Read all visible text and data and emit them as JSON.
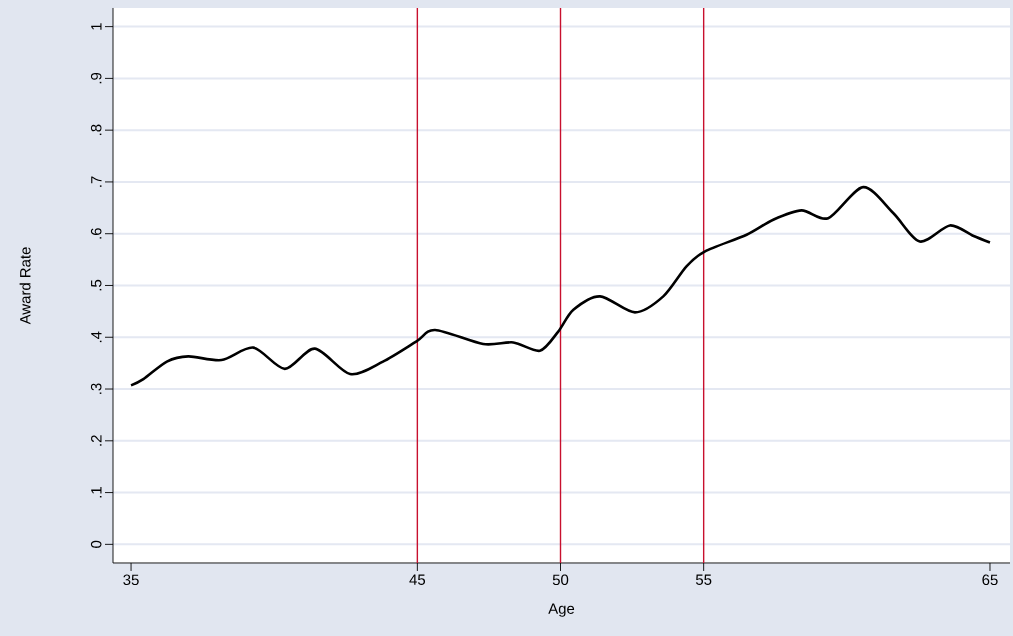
{
  "chart_data": {
    "type": "line",
    "xlabel": "Age",
    "ylabel": "Award Rate",
    "x": [
      35,
      35.43,
      36.25,
      37.0,
      38.16,
      39.27,
      40.37,
      41.42,
      42.65,
      43.8,
      44.97,
      45.62,
      47.3,
      48.35,
      49.28,
      49.92,
      50.45,
      51.38,
      52.6,
      53.59,
      54.4,
      55.05,
      56.5,
      57.43,
      58.42,
      59.35,
      60.57,
      61.62,
      62.55,
      63.6,
      64.41,
      65
    ],
    "series": [
      {
        "color": "#000000",
        "values": [
          0.307,
          0.319,
          0.353,
          0.363,
          0.356,
          0.38,
          0.339,
          0.378,
          0.329,
          0.353,
          0.392,
          0.414,
          0.387,
          0.39,
          0.374,
          0.411,
          0.453,
          0.479,
          0.448,
          0.479,
          0.537,
          0.566,
          0.598,
          0.627,
          0.645,
          0.63,
          0.69,
          0.64,
          0.585,
          0.616,
          0.596,
          0.583
        ]
      }
    ],
    "xlim": [
      34.37,
      65.7
    ],
    "ylim": [
      -0.036,
      1.036
    ],
    "xticks": [
      35,
      45,
      50,
      55,
      65
    ],
    "yticks": [
      {
        "value": 0,
        "label": "0"
      },
      {
        "value": 0.1,
        "label": ".1"
      },
      {
        "value": 0.2,
        "label": ".2"
      },
      {
        "value": 0.3,
        "label": ".3"
      },
      {
        "value": 0.4,
        "label": ".4"
      },
      {
        "value": 0.5,
        "label": ".5"
      },
      {
        "value": 0.6,
        "label": ".6"
      },
      {
        "value": 0.7,
        "label": ".7"
      },
      {
        "value": 0.8,
        "label": ".8"
      },
      {
        "value": 0.9,
        "label": ".9"
      },
      {
        "value": 1,
        "label": "1"
      }
    ],
    "ref_lines": [
      {
        "axis": "x",
        "value": 45,
        "color": "#c8102e"
      },
      {
        "axis": "x",
        "value": 50,
        "color": "#c8102e"
      },
      {
        "axis": "x",
        "value": 55,
        "color": "#c8102e"
      }
    ],
    "grid": "y",
    "marker": "none",
    "line_style": "solid"
  }
}
